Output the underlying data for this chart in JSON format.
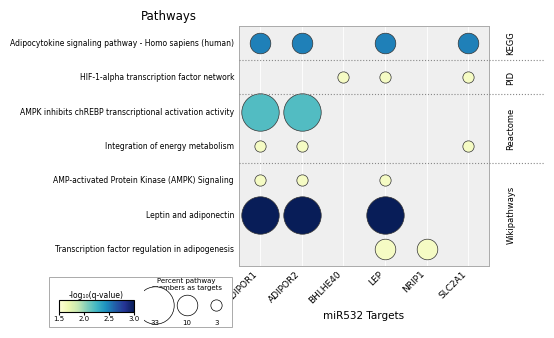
{
  "pathways": [
    "Adipocytokine signaling pathway - Homo sapiens (human)",
    "HIF-1-alpha transcription factor network",
    "AMPK inhibits chREBP transcriptional activation activity",
    "Integration of energy metabolism",
    "AMP-activated Protein Kinase (AMPK) Signaling",
    "Leptin and adiponectin",
    "Transcription factor regulation in adipogenesis"
  ],
  "targets": [
    "ADIPOR1",
    "ADIPOR2",
    "BHLHE40",
    "LEP",
    "NRIP1",
    "SLC2A1"
  ],
  "bubbles": [
    {
      "pathway": 0,
      "target": 0,
      "pct": 10,
      "fdr": 2.5
    },
    {
      "pathway": 0,
      "target": 1,
      "pct": 10,
      "fdr": 2.5
    },
    {
      "pathway": 0,
      "target": 3,
      "pct": 10,
      "fdr": 2.5
    },
    {
      "pathway": 0,
      "target": 5,
      "pct": 10,
      "fdr": 2.5
    },
    {
      "pathway": 1,
      "target": 2,
      "pct": 3,
      "fdr": 1.6
    },
    {
      "pathway": 1,
      "target": 3,
      "pct": 3,
      "fdr": 1.6
    },
    {
      "pathway": 1,
      "target": 5,
      "pct": 3,
      "fdr": 1.6
    },
    {
      "pathway": 2,
      "target": 0,
      "pct": 33,
      "fdr": 2.2
    },
    {
      "pathway": 2,
      "target": 1,
      "pct": 33,
      "fdr": 2.2
    },
    {
      "pathway": 3,
      "target": 0,
      "pct": 3,
      "fdr": 1.6
    },
    {
      "pathway": 3,
      "target": 1,
      "pct": 3,
      "fdr": 1.6
    },
    {
      "pathway": 3,
      "target": 5,
      "pct": 3,
      "fdr": 1.6
    },
    {
      "pathway": 4,
      "target": 0,
      "pct": 3,
      "fdr": 1.6
    },
    {
      "pathway": 4,
      "target": 1,
      "pct": 3,
      "fdr": 1.6
    },
    {
      "pathway": 4,
      "target": 3,
      "pct": 3,
      "fdr": 1.6
    },
    {
      "pathway": 5,
      "target": 0,
      "pct": 33,
      "fdr": 3.0
    },
    {
      "pathway": 5,
      "target": 1,
      "pct": 33,
      "fdr": 3.0
    },
    {
      "pathway": 5,
      "target": 3,
      "pct": 33,
      "fdr": 3.0
    },
    {
      "pathway": 6,
      "target": 3,
      "pct": 10,
      "fdr": 1.6
    },
    {
      "pathway": 6,
      "target": 4,
      "pct": 10,
      "fdr": 1.6
    }
  ],
  "source_labels": [
    "KEGG",
    "PID",
    "Reactome",
    "Wikipathways"
  ],
  "source_pathway_rows": [
    [
      0
    ],
    [
      1
    ],
    [
      2,
      3
    ],
    [
      4,
      5,
      6
    ]
  ],
  "divider_after_rows": [
    0,
    1,
    3
  ],
  "title": "Pathways",
  "xlabel": "miR532 Targets",
  "colorbar_label": "-log₁₀(q-value)",
  "colorbar_ticks": [
    1.5,
    2.0,
    2.5,
    3.0
  ],
  "fdr_min": 1.5,
  "fdr_max": 3.0,
  "size_legend_values": [
    33,
    10,
    3
  ],
  "size_legend_label": "Percent pathway\nmembers as targets"
}
